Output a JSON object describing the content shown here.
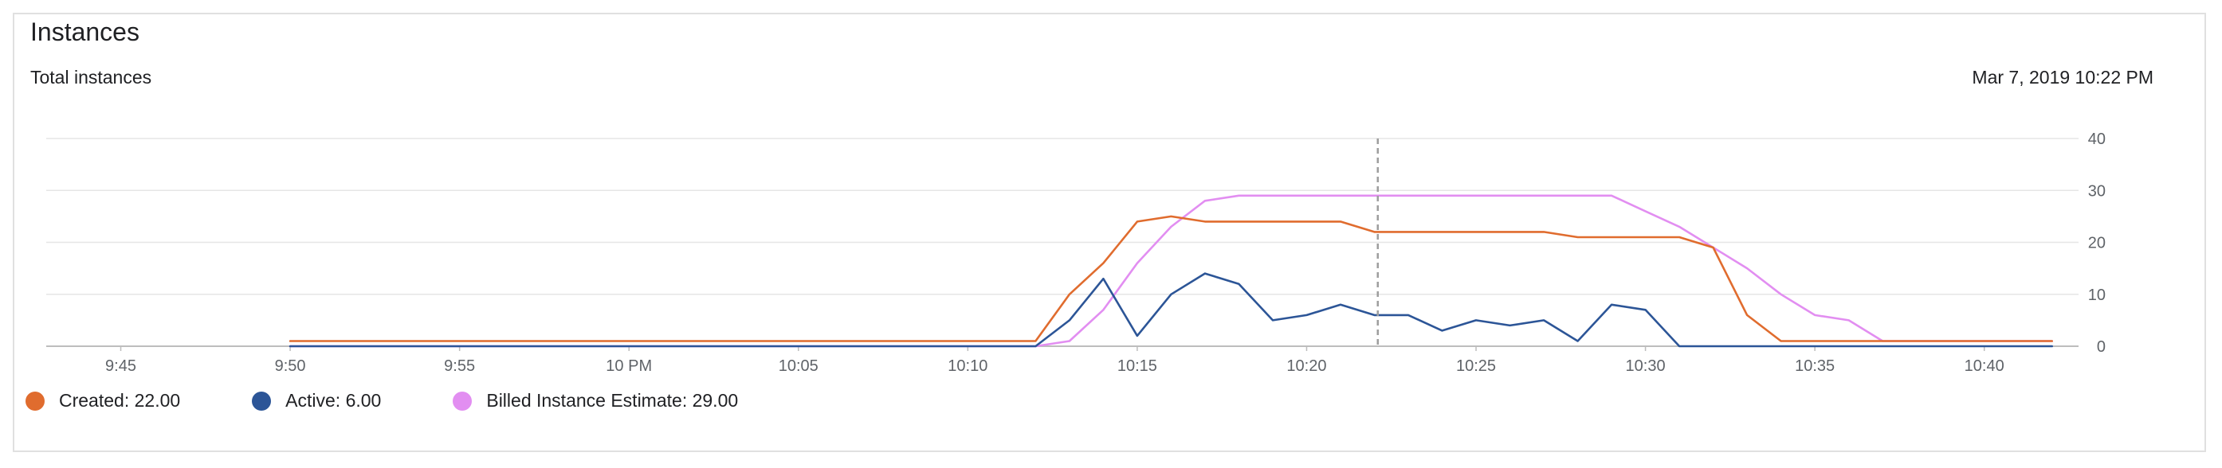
{
  "card": {
    "title": "Instances",
    "subtitle": "Total instances",
    "timestamp": "Mar 7, 2019 10:22 PM"
  },
  "legend": [
    {
      "label": "Created: 22.00",
      "color": "#e06c2e"
    },
    {
      "label": "Active: 6.00",
      "color": "#2c5597"
    },
    {
      "label": "Billed Instance Estimate: 29.00",
      "color": "#e28ef1"
    }
  ],
  "chart_data": {
    "type": "line",
    "title": "Total instances",
    "xlabel": "",
    "ylabel": "",
    "x_unit": "minutes",
    "x_ticks": [
      {
        "label": "9:45",
        "t": -15
      },
      {
        "label": "9:50",
        "t": -10
      },
      {
        "label": "9:55",
        "t": -5
      },
      {
        "label": "10 PM",
        "t": 0
      },
      {
        "label": "10:05",
        "t": 5
      },
      {
        "label": "10:10",
        "t": 10
      },
      {
        "label": "10:15",
        "t": 15
      },
      {
        "label": "10:20",
        "t": 20
      },
      {
        "label": "10:25",
        "t": 25
      },
      {
        "label": "10:30",
        "t": 30
      },
      {
        "label": "10:35",
        "t": 35
      },
      {
        "label": "10:40",
        "t": 40
      }
    ],
    "xlim": [
      -17.2,
      42.5
    ],
    "ylim": [
      0,
      40
    ],
    "y_ticks": [
      0,
      10,
      20,
      30,
      40
    ],
    "grid": true,
    "legend_position": "bottom-left",
    "hover_time": 22.1,
    "series": [
      {
        "name": "Created",
        "color": "#e06c2e",
        "points": [
          [
            -10,
            1
          ],
          [
            12,
            1
          ],
          [
            13,
            10
          ],
          [
            14,
            16
          ],
          [
            15,
            24
          ],
          [
            16,
            25
          ],
          [
            17,
            24
          ],
          [
            18,
            24
          ],
          [
            19,
            24
          ],
          [
            20,
            24
          ],
          [
            21,
            24
          ],
          [
            22,
            22
          ],
          [
            23,
            22
          ],
          [
            24,
            22
          ],
          [
            25,
            22
          ],
          [
            26,
            22
          ],
          [
            27,
            22
          ],
          [
            28,
            21
          ],
          [
            29,
            21
          ],
          [
            30,
            21
          ],
          [
            31,
            21
          ],
          [
            32,
            19
          ],
          [
            33,
            6
          ],
          [
            34,
            1
          ],
          [
            35,
            1
          ],
          [
            36,
            1
          ],
          [
            37,
            1
          ],
          [
            38,
            1
          ],
          [
            39,
            1
          ],
          [
            40,
            1
          ],
          [
            41,
            1
          ],
          [
            42,
            1
          ]
        ]
      },
      {
        "name": "Active",
        "color": "#2c5597",
        "points": [
          [
            -10,
            0
          ],
          [
            12,
            0
          ],
          [
            13,
            5
          ],
          [
            14,
            13
          ],
          [
            15,
            2
          ],
          [
            16,
            10
          ],
          [
            17,
            14
          ],
          [
            18,
            12
          ],
          [
            19,
            5
          ],
          [
            20,
            6
          ],
          [
            21,
            8
          ],
          [
            22,
            6
          ],
          [
            23,
            6
          ],
          [
            24,
            3
          ],
          [
            25,
            5
          ],
          [
            26,
            4
          ],
          [
            27,
            5
          ],
          [
            28,
            1
          ],
          [
            29,
            8
          ],
          [
            30,
            7
          ],
          [
            31,
            0
          ],
          [
            32,
            0
          ],
          [
            33,
            0
          ],
          [
            34,
            0
          ],
          [
            35,
            0
          ],
          [
            36,
            0
          ],
          [
            37,
            0
          ],
          [
            38,
            0
          ],
          [
            39,
            0
          ],
          [
            40,
            0
          ],
          [
            41,
            0
          ],
          [
            42,
            0
          ]
        ]
      },
      {
        "name": "Billed Instance Estimate",
        "color": "#e28ef1",
        "points": [
          [
            -10,
            0
          ],
          [
            4,
            0
          ],
          [
            5,
            0
          ],
          [
            6,
            0
          ],
          [
            12,
            0
          ],
          [
            13,
            1
          ],
          [
            14,
            7
          ],
          [
            15,
            16
          ],
          [
            16,
            23
          ],
          [
            17,
            28
          ],
          [
            18,
            29
          ],
          [
            19,
            29
          ],
          [
            20,
            29
          ],
          [
            21,
            29
          ],
          [
            22,
            29
          ],
          [
            23,
            29
          ],
          [
            24,
            29
          ],
          [
            25,
            29
          ],
          [
            26,
            29
          ],
          [
            27,
            29
          ],
          [
            28,
            29
          ],
          [
            29,
            29
          ],
          [
            30,
            26
          ],
          [
            31,
            23
          ],
          [
            32,
            19
          ],
          [
            33,
            15
          ],
          [
            34,
            10
          ],
          [
            35,
            6
          ],
          [
            36,
            5
          ],
          [
            37,
            1
          ],
          [
            38,
            1
          ],
          [
            39,
            1
          ],
          [
            40,
            1
          ],
          [
            41,
            1
          ],
          [
            42,
            1
          ]
        ]
      }
    ]
  }
}
